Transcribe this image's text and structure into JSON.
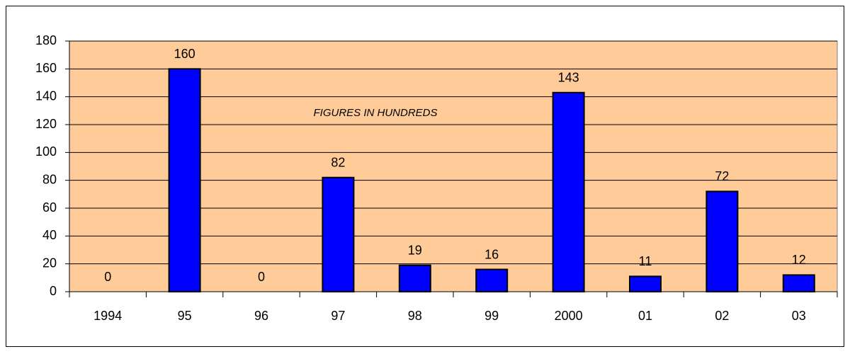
{
  "chart_data": {
    "type": "bar",
    "annotation": "FIGURES IN HUNDREDS",
    "categories": [
      "1994",
      "95",
      "96",
      "97",
      "98",
      "99",
      "2000",
      "01",
      "02",
      "03"
    ],
    "values": [
      0,
      160,
      0,
      82,
      19,
      16,
      143,
      11,
      72,
      12
    ],
    "color": "#0000ff",
    "plot_background": "#ffcc99",
    "ylim": [
      0,
      180
    ],
    "yticks": [
      0,
      20,
      40,
      60,
      80,
      100,
      120,
      140,
      160,
      180
    ],
    "grid": true
  }
}
